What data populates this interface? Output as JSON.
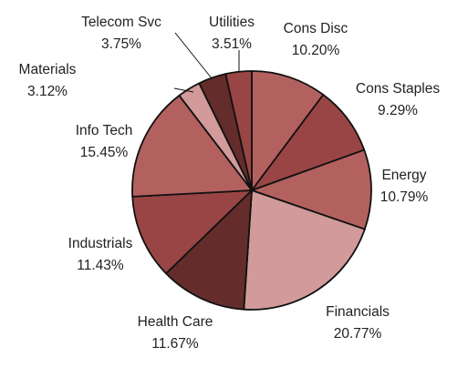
{
  "chart_data": {
    "type": "pie",
    "title": "",
    "start": "12 o'clock",
    "direction": "clockwise",
    "slices": [
      {
        "label": "Cons Disc",
        "value": 10.2,
        "value_label": "10.20%",
        "color": "#b3615f"
      },
      {
        "label": "Cons Staples",
        "value": 9.29,
        "value_label": "9.29%",
        "color": "#9a4545"
      },
      {
        "label": "Energy",
        "value": 10.79,
        "value_label": "10.79%",
        "color": "#b3615f"
      },
      {
        "label": "Financials",
        "value": 20.77,
        "value_label": "20.77%",
        "color": "#d29a9a"
      },
      {
        "label": "Health Care",
        "value": 11.67,
        "value_label": "11.67%",
        "color": "#652c2c"
      },
      {
        "label": "Industrials",
        "value": 11.43,
        "value_label": "11.43%",
        "color": "#9a4545"
      },
      {
        "label": "Info Tech",
        "value": 15.45,
        "value_label": "15.45%",
        "color": "#b3615f"
      },
      {
        "label": "Materials",
        "value": 3.12,
        "value_label": "3.12%",
        "color": "#d29a9a"
      },
      {
        "label": "Telecom Svc",
        "value": 3.75,
        "value_label": "3.75%",
        "color": "#652c2c"
      },
      {
        "label": "Utilities",
        "value": 3.51,
        "value_label": "3.51%",
        "color": "#9a4545"
      }
    ]
  }
}
